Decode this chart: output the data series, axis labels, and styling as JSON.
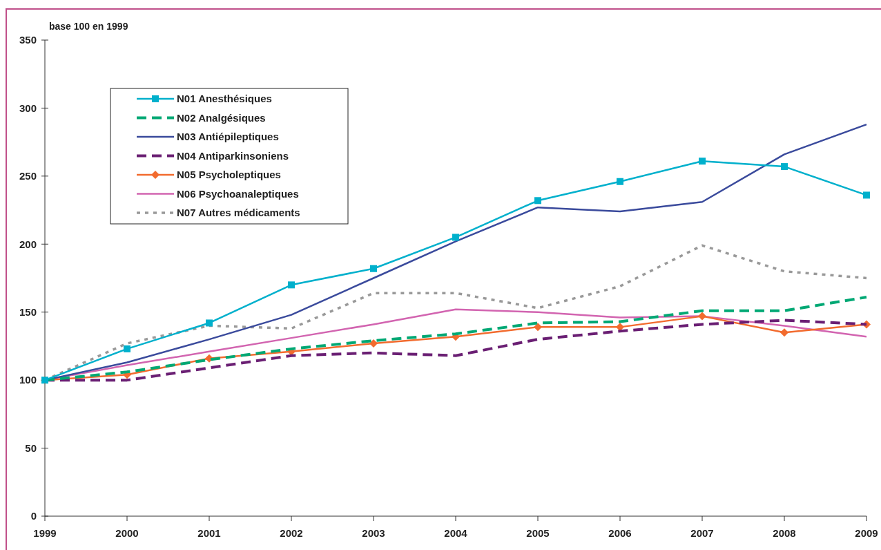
{
  "chart_data": {
    "type": "line",
    "ylabel": "base 100 en 1999",
    "x": [
      1999,
      2000,
      2001,
      2002,
      2003,
      2004,
      2005,
      2006,
      2007,
      2008,
      2009
    ],
    "xlim": [
      1999,
      2009
    ],
    "xticks": [
      1999,
      2000,
      2001,
      2002,
      2003,
      2004,
      2005,
      2006,
      2007,
      2008,
      2009
    ],
    "ylim": [
      0,
      350
    ],
    "yticks": [
      0,
      50,
      100,
      150,
      200,
      250,
      300,
      350
    ],
    "grid": false,
    "legend": "top left",
    "series": [
      {
        "name": "N01 Anesthésiques",
        "color": "#00b0cc",
        "marker": "square",
        "line_style": "solid",
        "values": [
          100,
          123,
          142,
          170,
          182,
          205,
          232,
          246,
          261,
          257,
          236
        ]
      },
      {
        "name": "N02 Analgésiques",
        "color": "#00a874",
        "marker": "none",
        "line_style": "dashed",
        "values": [
          100,
          106,
          115,
          123,
          129,
          134,
          142,
          143,
          151,
          151,
          161
        ]
      },
      {
        "name": "N03 Antiépileptiques",
        "color": "#3a4a9c",
        "marker": "none",
        "line_style": "solid",
        "values": [
          100,
          113,
          130,
          148,
          175,
          202,
          227,
          224,
          231,
          266,
          288
        ]
      },
      {
        "name": "N04 Antiparkinsoniens",
        "color": "#6a1f73",
        "marker": "none",
        "line_style": "dashed",
        "values": [
          100,
          100,
          109,
          118,
          120,
          118,
          130,
          136,
          141,
          144,
          141
        ]
      },
      {
        "name": "N05 Psycholeptiques",
        "color": "#f26b2e",
        "marker": "diamond",
        "line_style": "solid",
        "values": [
          100,
          104,
          116,
          121,
          127,
          132,
          139,
          139,
          147,
          135,
          141
        ]
      },
      {
        "name": "N06 Psychoanaleptiques",
        "color": "#d264b0",
        "marker": "none",
        "line_style": "solid",
        "values": [
          100,
          111,
          121,
          131,
          141,
          152,
          150,
          146,
          147,
          140,
          132
        ]
      },
      {
        "name": "N07 Autres médicaments",
        "color": "#999999",
        "marker": "none",
        "line_style": "dotted",
        "values": [
          100,
          127,
          140,
          138,
          164,
          164,
          153,
          169,
          199,
          180,
          175
        ]
      }
    ]
  }
}
